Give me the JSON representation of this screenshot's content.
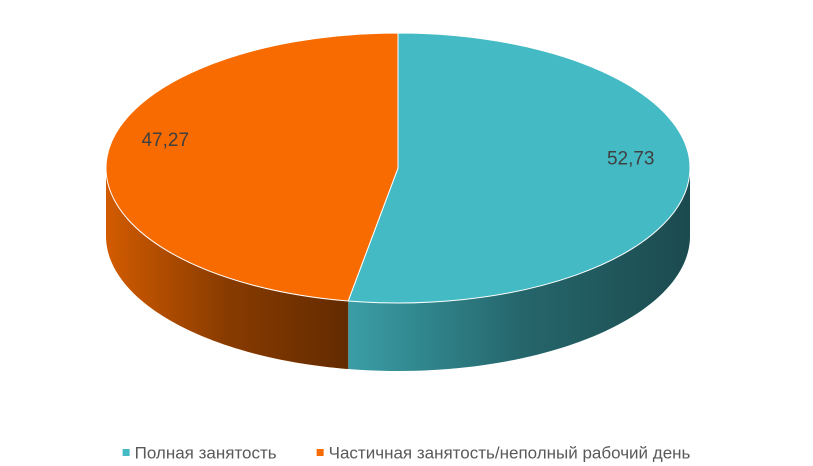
{
  "chart_data": {
    "type": "pie3d",
    "categories": [
      "Полная занятость",
      "Частичная занятость/неполный рабочий день"
    ],
    "values": [
      52.73,
      47.27
    ],
    "value_labels": [
      "52,73",
      "47,27"
    ],
    "colors": [
      "#44bac4",
      "#f76b00"
    ],
    "legend": "bottom"
  }
}
